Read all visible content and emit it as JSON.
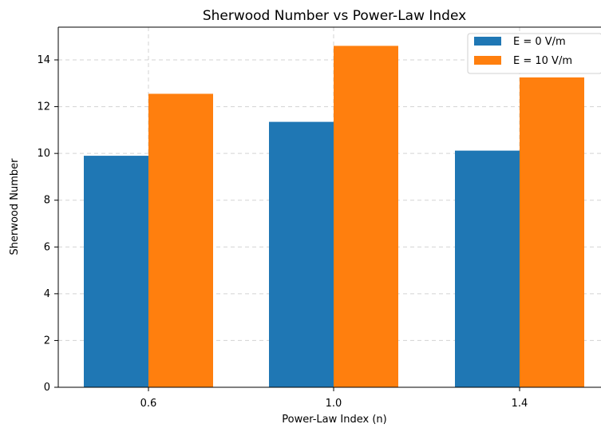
{
  "chart_data": {
    "type": "bar",
    "title": "Sherwood Number vs Power-Law Index",
    "xlabel": "Power-Law Index (n)",
    "ylabel": "Sherwood Number",
    "categories": [
      "0.6",
      "1.0",
      "1.4"
    ],
    "series": [
      {
        "name": "E = 0 V/m",
        "color": "#1f77b4",
        "values": [
          9.9,
          11.35,
          10.12
        ]
      },
      {
        "name": "E = 10 V/m",
        "color": "#ff7f0e",
        "values": [
          12.55,
          14.6,
          13.25
        ]
      }
    ],
    "ylim": [
      0,
      15.4
    ],
    "yticks": [
      "0",
      "2",
      "4",
      "6",
      "8",
      "10",
      "12",
      "14"
    ],
    "grid": true,
    "legend": "top-right"
  }
}
